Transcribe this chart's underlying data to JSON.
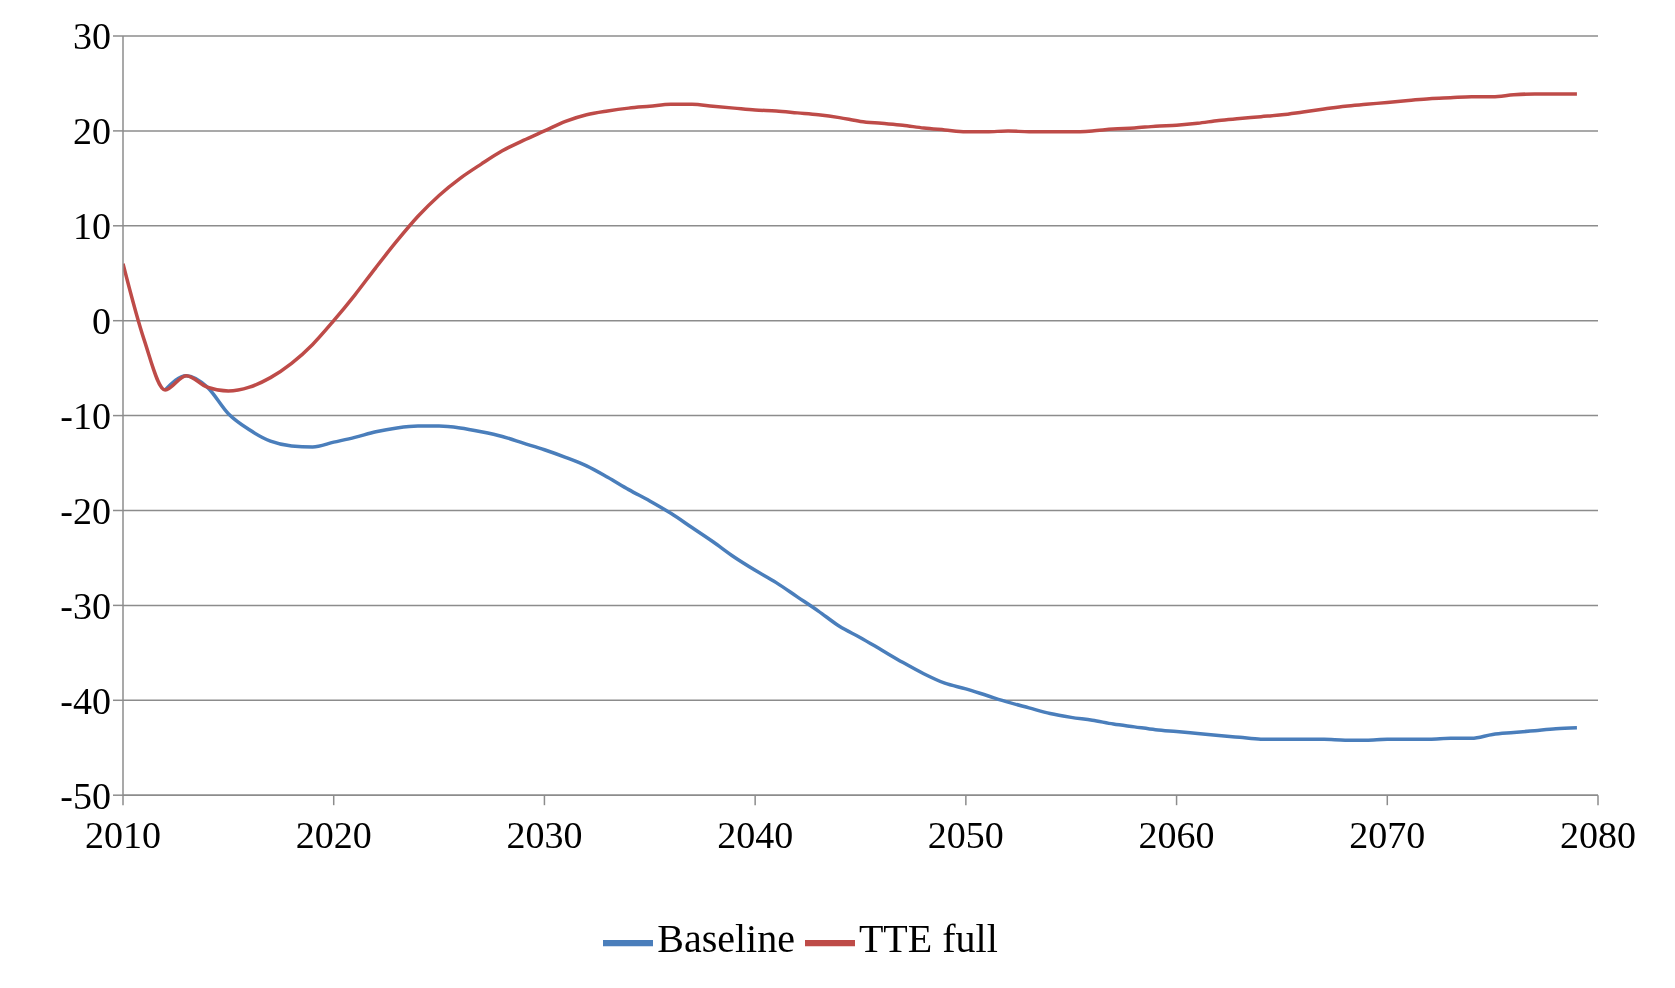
{
  "chart_data": {
    "type": "line",
    "x": [
      2010,
      2011,
      2012,
      2013,
      2014,
      2015,
      2016,
      2017,
      2018,
      2019,
      2020,
      2021,
      2022,
      2023,
      2024,
      2025,
      2026,
      2027,
      2028,
      2029,
      2030,
      2031,
      2032,
      2033,
      2034,
      2035,
      2036,
      2037,
      2038,
      2039,
      2040,
      2041,
      2042,
      2043,
      2044,
      2045,
      2046,
      2047,
      2048,
      2049,
      2050,
      2051,
      2052,
      2053,
      2054,
      2055,
      2056,
      2057,
      2058,
      2059,
      2060,
      2061,
      2062,
      2063,
      2064,
      2065,
      2066,
      2067,
      2068,
      2069,
      2070,
      2071,
      2072,
      2073,
      2074,
      2075,
      2076,
      2077,
      2078,
      2079
    ],
    "series": [
      {
        "name": "Baseline",
        "color": "#4a7ebb",
        "values": [
          null,
          null,
          -7.3,
          -5.8,
          -7,
          -9.8,
          -11.5,
          -12.7,
          -13.2,
          -13.3,
          -12.8,
          -12.3,
          -11.7,
          -11.3,
          -11.1,
          -11.1,
          -11.3,
          -11.7,
          -12.2,
          -12.9,
          -13.6,
          -14.4,
          -15.3,
          -16.5,
          -17.8,
          -19,
          -20.3,
          -21.8,
          -23.3,
          -24.9,
          -26.3,
          -27.6,
          -29.1,
          -30.6,
          -32.2,
          -33.4,
          -34.7,
          -36,
          -37.2,
          -38.2,
          -38.8,
          -39.5,
          -40.2,
          -40.8,
          -41.4,
          -41.8,
          -42.1,
          -42.5,
          -42.8,
          -43.1,
          -43.3,
          -43.5,
          -43.7,
          -43.9,
          -44.1,
          -44.1,
          -44.1,
          -44.1,
          -44.2,
          -44.2,
          -44.1,
          -44.1,
          -44.1,
          -44,
          -44,
          -43.6,
          -43.4,
          -43.2,
          -43,
          -42.9
        ]
      },
      {
        "name": "TTE full",
        "color": "#be4b48",
        "values": [
          6,
          -2,
          -7.3,
          -5.8,
          -7,
          -7.4,
          -7,
          -6,
          -4.5,
          -2.5,
          0,
          2.7,
          5.6,
          8.4,
          11,
          13.2,
          15,
          16.5,
          17.9,
          19,
          20,
          21,
          21.7,
          22.1,
          22.4,
          22.6,
          22.8,
          22.8,
          22.6,
          22.4,
          22.2,
          22.1,
          21.9,
          21.7,
          21.4,
          21,
          20.8,
          20.6,
          20.3,
          20.1,
          19.9,
          19.9,
          20,
          19.9,
          19.9,
          19.9,
          20,
          20.2,
          20.3,
          20.5,
          20.6,
          20.8,
          21.1,
          21.3,
          21.5,
          21.7,
          22,
          22.3,
          22.6,
          22.8,
          23,
          23.2,
          23.4,
          23.5,
          23.6,
          23.6,
          23.8,
          23.9,
          23.9,
          23.9
        ]
      }
    ],
    "xlim": [
      2010,
      2080
    ],
    "xticks": [
      2010,
      2020,
      2030,
      2040,
      2050,
      2060,
      2070,
      2080
    ],
    "ylim": [
      -50,
      30
    ],
    "yticks": [
      -50,
      -40,
      -30,
      -20,
      -10,
      0,
      10,
      20,
      30
    ],
    "grid": "y",
    "legend": "bottom",
    "marker": "none",
    "line_style": "solid"
  }
}
